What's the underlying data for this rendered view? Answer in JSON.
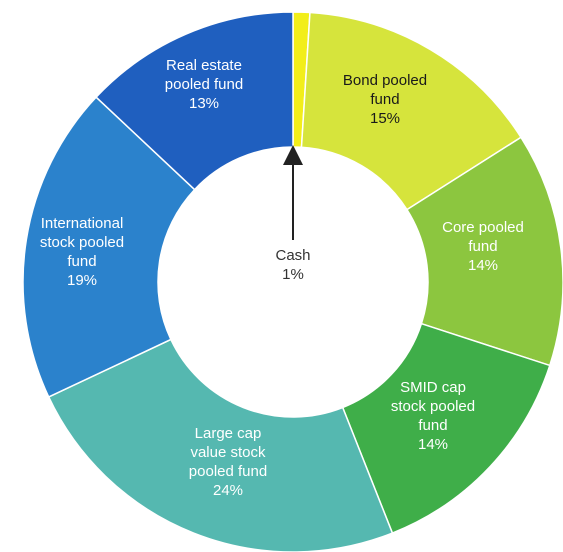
{
  "chart_data": {
    "type": "pie",
    "variant": "donut",
    "title": "",
    "slices": [
      {
        "label": [
          "Cash",
          "1%"
        ],
        "value": 1,
        "color": "#f2ee1a"
      },
      {
        "label": [
          "Bond pooled",
          "fund",
          "15%"
        ],
        "value": 15,
        "color": "#d6e43c"
      },
      {
        "label": [
          "Core pooled",
          "fund",
          "14%"
        ],
        "value": 14,
        "color": "#8cc63f"
      },
      {
        "label": [
          "SMID cap",
          "stock pooled",
          "fund",
          "14%"
        ],
        "value": 14,
        "color": "#3fae49"
      },
      {
        "label": [
          "Large cap",
          "value stock",
          "pooled fund",
          "24%"
        ],
        "value": 24,
        "color": "#55b8b0"
      },
      {
        "label": [
          "International",
          "stock pooled",
          "fund",
          "19%"
        ],
        "value": 19,
        "color": "#2b82cc"
      },
      {
        "label": [
          "Real estate",
          "pooled fund",
          "13%"
        ],
        "value": 13,
        "color": "#1f5fbf"
      }
    ]
  }
}
